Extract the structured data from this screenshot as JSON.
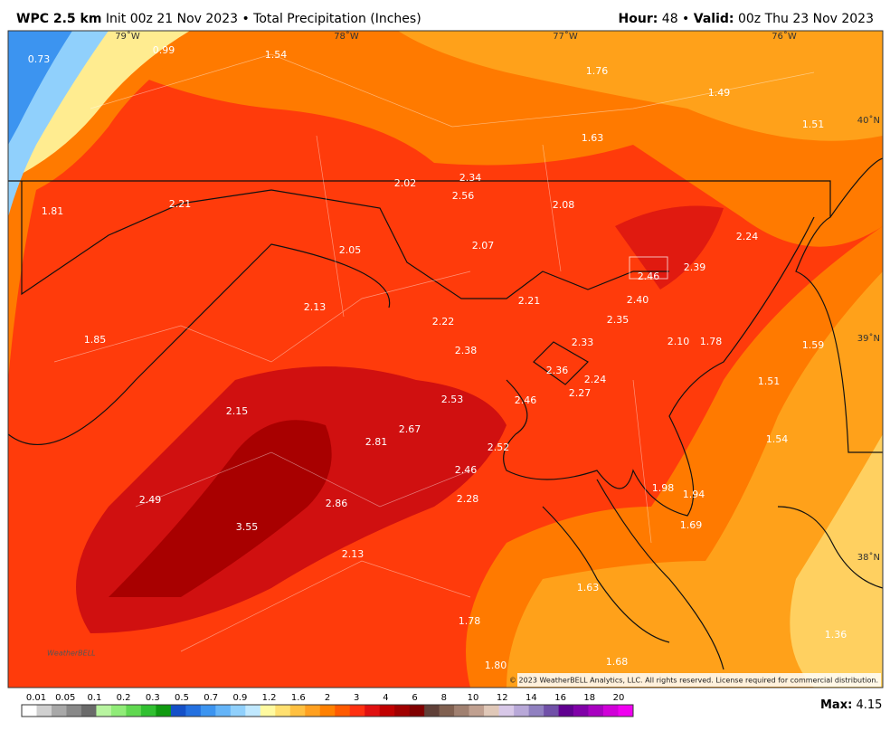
{
  "header": {
    "title_bold": "WPC 2.5 km",
    "title_rest": "Init 00z 21 Nov 2023 • Total Precipitation (Inches)",
    "hour_label": "Hour:",
    "hour": "48 •",
    "valid_label": "Valid:",
    "valid": "00z Thu 23 Nov 2023"
  },
  "map": {
    "lon_labels": [
      "79˚W",
      "78˚W",
      "77˚W",
      "76˚W"
    ],
    "lat_labels": [
      "40˚N",
      "39˚N",
      "38˚N"
    ],
    "values": [
      "0.73",
      "0.99",
      "1.54",
      "1.76",
      "1.49",
      "1.51",
      "1.63",
      "2.34",
      "2.02",
      "2.56",
      "2.08",
      "1.81",
      "2.21",
      "2.24",
      "2.05",
      "2.07",
      "2.46",
      "2.39",
      "2.21",
      "2.40",
      "2.13",
      "2.22",
      "2.35",
      "1.85",
      "2.33",
      "2.10",
      "1.78",
      "1.59",
      "2.38",
      "2.36",
      "2.24",
      "1.51",
      "2.27",
      "2.53",
      "2.46",
      "2.15",
      "2.67",
      "2.81",
      "1.54",
      "2.52",
      "2.46",
      "1.98",
      "1.94",
      "2.49",
      "2.28",
      "2.86",
      "3.55",
      "1.69",
      "2.13",
      "1.63",
      "1.78",
      "1.36",
      "1.68",
      "1.80"
    ],
    "copyright": "© 2023 WeatherBELL Analytics, LLC. All rights reserved. License required for commercial distribution.",
    "logo": "WeatherBELL"
  },
  "legend": {
    "labels": [
      "0.01",
      "0.05",
      "0.1",
      "0.2",
      "0.3",
      "0.5",
      "0.7",
      "0.9",
      "1.2",
      "1.6",
      "2",
      "3",
      "4",
      "6",
      "8",
      "10",
      "12",
      "14",
      "16",
      "18",
      "20"
    ],
    "colors": [
      "#ffffff",
      "#d0d0d0",
      "#a8a8a8",
      "#888888",
      "#6a6a6a",
      "#b8f4a0",
      "#90ec78",
      "#60d850",
      "#30c030",
      "#109a10",
      "#1450c8",
      "#2470e0",
      "#3c94f0",
      "#64b4f8",
      "#90d0fc",
      "#c0e8fe",
      "#fffaa0",
      "#ffe070",
      "#ffc040",
      "#ffa020",
      "#ff8000",
      "#ff5a00",
      "#ff3010",
      "#e01010",
      "#c00000",
      "#a00000",
      "#800000",
      "#604038",
      "#806050",
      "#a08070",
      "#c0a090",
      "#e0c8b8",
      "#d8c8e8",
      "#b8a8d8",
      "#9080c0",
      "#7050a8",
      "#600090",
      "#8000a8",
      "#a800c0",
      "#d000d8",
      "#f000f0"
    ],
    "max_label": "Max:",
    "max": "4.15"
  }
}
